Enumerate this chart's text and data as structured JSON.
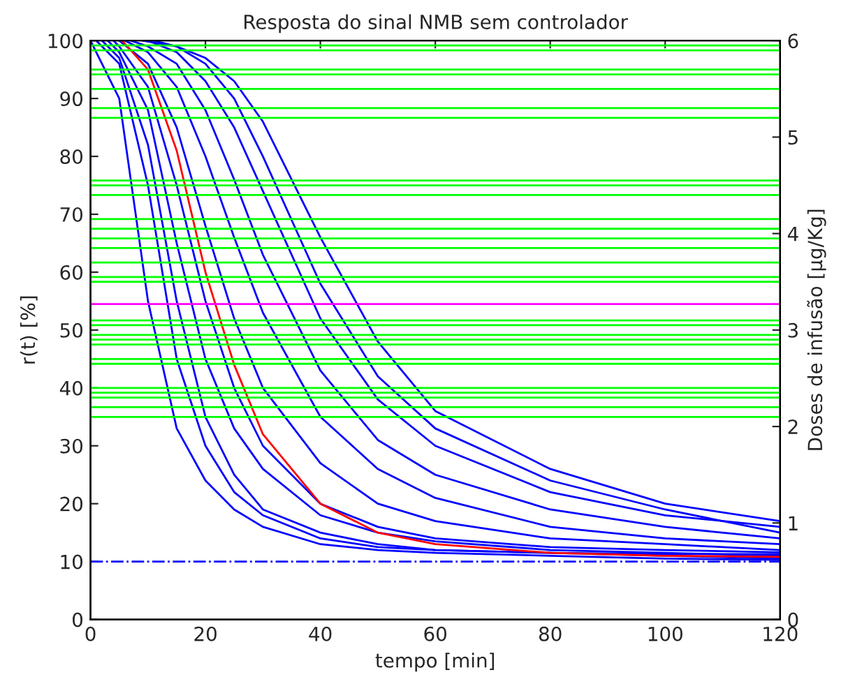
{
  "chart_data": {
    "type": "line",
    "title": "Resposta do sinal NMB sem controlador",
    "xlabel": "tempo [min]",
    "ylabel": "r(t) [%]",
    "y2label": "Doses de infusão [μg/Kg]",
    "xlim": [
      0,
      120
    ],
    "xticks": [
      0,
      20,
      40,
      60,
      80,
      100,
      120
    ],
    "ylim": [
      0,
      100
    ],
    "yticks": [
      0,
      10,
      20,
      30,
      40,
      50,
      60,
      70,
      80,
      90,
      100
    ],
    "y2lim": [
      0,
      6
    ],
    "y2ticks": [
      0,
      1,
      2,
      3,
      4,
      5,
      6
    ],
    "grid": false,
    "legend": false,
    "marker": "none",
    "line_style": "solid",
    "series": [
      {
        "color": "#0000ff",
        "x": [
          0,
          5,
          10,
          15,
          20,
          25,
          30,
          40,
          50,
          60,
          80,
          100,
          120
        ],
        "values": [
          100,
          90,
          55,
          33,
          24,
          19,
          16,
          13,
          12,
          11.5,
          11,
          10.5,
          10.3
        ]
      },
      {
        "color": "#0000ff",
        "x": [
          1,
          5,
          10,
          15,
          20,
          25,
          30,
          40,
          50,
          60,
          80,
          100,
          120
        ],
        "values": [
          100,
          96,
          75,
          45,
          30,
          22,
          18,
          14,
          12.5,
          12,
          11.5,
          11,
          10.5
        ]
      },
      {
        "color": "#0000ff",
        "x": [
          2,
          5,
          10,
          15,
          20,
          25,
          30,
          40,
          50,
          60,
          80,
          100,
          120
        ],
        "values": [
          100,
          97,
          82,
          55,
          35,
          25,
          19,
          15,
          13,
          12,
          11.5,
          11.3,
          11.3
        ]
      },
      {
        "color": "#0000ff",
        "x": [
          3,
          5,
          10,
          15,
          20,
          25,
          30,
          40,
          50,
          60,
          80,
          100,
          120
        ],
        "values": [
          100,
          98,
          88,
          65,
          45,
          33,
          26,
          18,
          15,
          13.5,
          12,
          11.5,
          11
        ]
      },
      {
        "color": "#0000ff",
        "x": [
          4,
          5,
          10,
          15,
          20,
          25,
          30,
          40,
          50,
          60,
          80,
          100,
          120
        ],
        "values": [
          100,
          99,
          92,
          75,
          55,
          40,
          30,
          20,
          16,
          14,
          12.5,
          12,
          11.6
        ]
      },
      {
        "color": "#0000ff",
        "x": [
          5,
          10,
          15,
          20,
          25,
          30,
          40,
          50,
          60,
          80,
          100,
          120
        ],
        "values": [
          100,
          96,
          85,
          68,
          52,
          40,
          27,
          20,
          17,
          14,
          13,
          12
        ]
      },
      {
        "color": "#0000ff",
        "x": [
          6,
          10,
          15,
          20,
          25,
          30,
          40,
          50,
          60,
          80,
          100,
          120
        ],
        "values": [
          100,
          98,
          92,
          80,
          66,
          53,
          35,
          26,
          21,
          16,
          14,
          13
        ]
      },
      {
        "color": "#0000ff",
        "x": [
          7,
          10,
          15,
          20,
          25,
          30,
          40,
          50,
          60,
          80,
          100,
          120
        ],
        "values": [
          100,
          99,
          96,
          88,
          76,
          63,
          43,
          31,
          25,
          19,
          16,
          14
        ]
      },
      {
        "color": "#0000ff",
        "x": [
          10,
          15,
          20,
          25,
          30,
          40,
          50,
          60,
          80,
          100,
          120
        ],
        "values": [
          100,
          98,
          93,
          85,
          74,
          52,
          38,
          30,
          22,
          18,
          16
        ]
      },
      {
        "color": "#0000ff",
        "x": [
          9,
          15,
          20,
          25,
          30,
          40,
          50,
          60,
          80,
          100,
          120
        ],
        "values": [
          100,
          99,
          96,
          90,
          80,
          58,
          42,
          33,
          24,
          19,
          15
        ]
      },
      {
        "color": "#0000ff",
        "x": [
          11,
          15,
          20,
          25,
          30,
          40,
          50,
          60,
          80,
          100,
          120
        ],
        "values": [
          100,
          99,
          97,
          93,
          86,
          66,
          48,
          36,
          26,
          20,
          17
        ]
      },
      {
        "color": "#ff0000",
        "x": [
          5.5,
          10,
          15,
          20,
          25,
          30,
          40,
          50,
          60,
          80,
          100,
          120
        ],
        "values": [
          100,
          95,
          81,
          60,
          44,
          32,
          20,
          15,
          13,
          11.5,
          11,
          10.8
        ]
      }
    ],
    "ref_lines": [
      {
        "axis": "y",
        "value": 10,
        "color": "#0000ff",
        "line_style": "dashdot"
      },
      {
        "axis": "y2",
        "value": 5.95,
        "color": "#00ff00"
      },
      {
        "axis": "y2",
        "value": 5.9,
        "color": "#00ff00"
      },
      {
        "axis": "y2",
        "value": 5.7,
        "color": "#00ff00"
      },
      {
        "axis": "y2",
        "value": 5.65,
        "color": "#00ff00"
      },
      {
        "axis": "y2",
        "value": 5.5,
        "color": "#00ff00"
      },
      {
        "axis": "y2",
        "value": 5.3,
        "color": "#00ff00"
      },
      {
        "axis": "y2",
        "value": 5.2,
        "color": "#00ff00"
      },
      {
        "axis": "y2",
        "value": 4.55,
        "color": "#00ff00"
      },
      {
        "axis": "y2",
        "value": 4.5,
        "color": "#00ff00"
      },
      {
        "axis": "y2",
        "value": 4.4,
        "color": "#00ff00"
      },
      {
        "axis": "y2",
        "value": 4.15,
        "color": "#00ff00"
      },
      {
        "axis": "y2",
        "value": 4.05,
        "color": "#00ff00"
      },
      {
        "axis": "y2",
        "value": 3.95,
        "color": "#00ff00"
      },
      {
        "axis": "y2",
        "value": 3.85,
        "color": "#00ff00"
      },
      {
        "axis": "y2",
        "value": 3.7,
        "color": "#00ff00"
      },
      {
        "axis": "y2",
        "value": 3.55,
        "color": "#00ff00"
      },
      {
        "axis": "y2",
        "value": 3.5,
        "color": "#00ff00"
      },
      {
        "axis": "y2",
        "value": 3.27,
        "color": "#ff00ff"
      },
      {
        "axis": "y2",
        "value": 3.1,
        "color": "#00ff00"
      },
      {
        "axis": "y2",
        "value": 3.05,
        "color": "#00ff00"
      },
      {
        "axis": "y2",
        "value": 2.95,
        "color": "#00ff00"
      },
      {
        "axis": "y2",
        "value": 2.9,
        "color": "#00ff00"
      },
      {
        "axis": "y2",
        "value": 2.85,
        "color": "#00ff00"
      },
      {
        "axis": "y2",
        "value": 2.7,
        "color": "#00ff00"
      },
      {
        "axis": "y2",
        "value": 2.65,
        "color": "#00ff00"
      },
      {
        "axis": "y2",
        "value": 2.4,
        "color": "#00ff00"
      },
      {
        "axis": "y2",
        "value": 2.35,
        "color": "#00ff00"
      },
      {
        "axis": "y2",
        "value": 2.3,
        "color": "#00ff00"
      },
      {
        "axis": "y2",
        "value": 2.2,
        "color": "#00ff00"
      },
      {
        "axis": "y2",
        "value": 2.1,
        "color": "#00ff00"
      }
    ]
  }
}
